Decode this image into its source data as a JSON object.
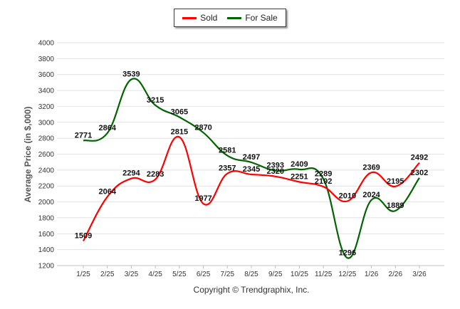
{
  "chart_data": {
    "type": "line",
    "title": "",
    "xlabel": "",
    "ylabel": "Average Price (in $,000)",
    "ylim": [
      1200,
      4000
    ],
    "y_tick_step": 200,
    "grid": "horizontal",
    "categories": [
      "1/25",
      "2/25",
      "3/25",
      "4/25",
      "5/25",
      "6/25",
      "7/25",
      "8/25",
      "9/25",
      "10/25",
      "11/25",
      "12/25",
      "1/26",
      "2/26",
      "3/26"
    ],
    "series": [
      {
        "name": "Sold",
        "color": "#ff0000",
        "values": [
          1509,
          2064,
          2294,
          2283,
          2815,
          1977,
          2357,
          2345,
          2320,
          2251,
          2192,
          2010,
          2369,
          2195,
          2492
        ]
      },
      {
        "name": "For Sale",
        "color": "#006400",
        "values": [
          2771,
          2864,
          3539,
          3215,
          3065,
          2870,
          2581,
          2497,
          2393,
          2409,
          2289,
          1296,
          2024,
          1889,
          2302
        ]
      }
    ],
    "legend_position": "top-center",
    "footer": "Copyright © Trendgraphix, Inc."
  }
}
